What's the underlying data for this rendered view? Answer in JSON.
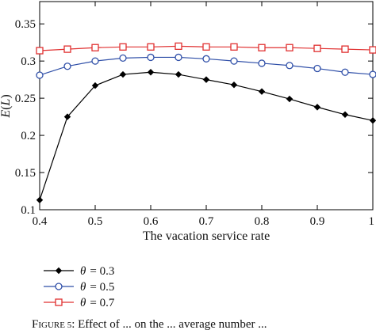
{
  "chart_data": {
    "type": "line",
    "xlabel": "The vacation service rate",
    "ylabel": "E(L)",
    "xlim": [
      0.4,
      1.0
    ],
    "ylim": [
      0.1,
      0.38
    ],
    "x_ticks": [
      "0.4",
      "0.5",
      "0.6",
      "0.7",
      "0.8",
      "0.9",
      "1"
    ],
    "y_ticks": [
      "0.1",
      "0.15",
      "0.2",
      "0.25",
      "0.3",
      "0.35"
    ],
    "grid": false,
    "legend_position": "below",
    "x": [
      0.4,
      0.45,
      0.5,
      0.55,
      0.6,
      0.65,
      0.7,
      0.75,
      0.8,
      0.85,
      0.9,
      0.95,
      1.0
    ],
    "series": [
      {
        "name": "θ = 0.3",
        "legend_symbol": "θ",
        "legend_value": "= 0.3",
        "color": "#000000",
        "marker": "diamond",
        "values": [
          0.113,
          0.225,
          0.267,
          0.282,
          0.285,
          0.282,
          0.275,
          0.268,
          0.259,
          0.249,
          0.238,
          0.228,
          0.22
        ]
      },
      {
        "name": "θ = 0.5",
        "legend_symbol": "θ",
        "legend_value": "= 0.5",
        "color": "#2f4fa8",
        "marker": "circle",
        "values": [
          0.281,
          0.293,
          0.3,
          0.304,
          0.305,
          0.305,
          0.303,
          0.3,
          0.297,
          0.294,
          0.29,
          0.285,
          0.282
        ]
      },
      {
        "name": "θ = 0.7",
        "legend_symbol": "θ",
        "legend_value": "= 0.7",
        "color": "#e03030",
        "marker": "square",
        "values": [
          0.314,
          0.316,
          0.318,
          0.319,
          0.319,
          0.32,
          0.319,
          0.319,
          0.318,
          0.318,
          0.317,
          0.316,
          0.315
        ]
      }
    ]
  },
  "caption": "Figure 5: Effect of ... on the ... average number ..."
}
